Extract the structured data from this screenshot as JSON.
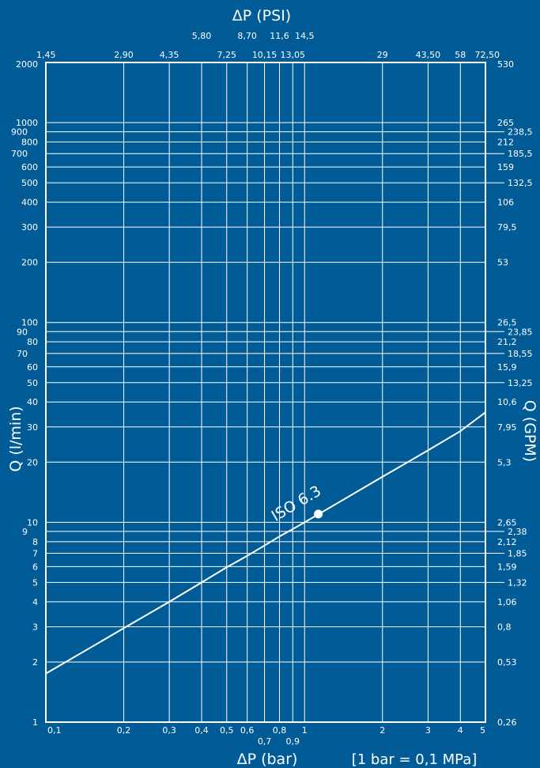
{
  "chart_data": {
    "type": "line",
    "x_scale": "log",
    "y_scale": "log",
    "xlim": [
      0.1,
      5
    ],
    "ylim": [
      1,
      2000
    ],
    "grid": true,
    "xlabel_bottom": "ΔP (bar)",
    "xlabel_top": "ΔP (PSI)",
    "ylabel_left": "Q (l/min)",
    "ylabel_right": "Q (GPM)",
    "note": "[1 bar = 0,1 MPa]",
    "x_bottom_ticks": [
      {
        "v": 0.1,
        "label": "0,1"
      },
      {
        "v": 0.2,
        "label": "0,2"
      },
      {
        "v": 0.3,
        "label": "0,3"
      },
      {
        "v": 0.4,
        "label": "0,4"
      },
      {
        "v": 0.5,
        "label": "0,5"
      },
      {
        "v": 0.6,
        "label": "0,6"
      },
      {
        "v": 0.7,
        "label": "0,7"
      },
      {
        "v": 0.8,
        "label": "0,8"
      },
      {
        "v": 0.9,
        "label": "0,9"
      },
      {
        "v": 1,
        "label": "1"
      },
      {
        "v": 2,
        "label": "2"
      },
      {
        "v": 3,
        "label": "3"
      },
      {
        "v": 4,
        "label": "4"
      },
      {
        "v": 5,
        "label": "5"
      }
    ],
    "x_top_ticks": [
      {
        "v": 0.1,
        "label": "1,45"
      },
      {
        "v": 0.2,
        "label": "2,90"
      },
      {
        "v": 0.3,
        "label": "4,35"
      },
      {
        "v": 0.4,
        "label": "5,80"
      },
      {
        "v": 0.5,
        "label": "7,25"
      },
      {
        "v": 0.6,
        "label": "8,70"
      },
      {
        "v": 0.7,
        "label": "10,15"
      },
      {
        "v": 0.8,
        "label": "11,6"
      },
      {
        "v": 0.9,
        "label": "13,05"
      },
      {
        "v": 1,
        "label": "14,5"
      },
      {
        "v": 2,
        "label": "29"
      },
      {
        "v": 3,
        "label": "43,50"
      },
      {
        "v": 4,
        "label": "58"
      },
      {
        "v": 5,
        "label": "72,50"
      }
    ],
    "y_left_ticks": [
      {
        "v": 1,
        "label": "1"
      },
      {
        "v": 2,
        "label": "2"
      },
      {
        "v": 3,
        "label": "3"
      },
      {
        "v": 4,
        "label": "4"
      },
      {
        "v": 5,
        "label": "5"
      },
      {
        "v": 6,
        "label": "6"
      },
      {
        "v": 7,
        "label": "7"
      },
      {
        "v": 8,
        "label": "8"
      },
      {
        "v": 9,
        "label": "9"
      },
      {
        "v": 10,
        "label": "10"
      },
      {
        "v": 20,
        "label": "20"
      },
      {
        "v": 30,
        "label": "30"
      },
      {
        "v": 40,
        "label": "40"
      },
      {
        "v": 50,
        "label": "50"
      },
      {
        "v": 60,
        "label": "60"
      },
      {
        "v": 70,
        "label": "70"
      },
      {
        "v": 80,
        "label": "80"
      },
      {
        "v": 90,
        "label": "90"
      },
      {
        "v": 100,
        "label": "100"
      },
      {
        "v": 200,
        "label": "200"
      },
      {
        "v": 300,
        "label": "300"
      },
      {
        "v": 400,
        "label": "400"
      },
      {
        "v": 500,
        "label": "500"
      },
      {
        "v": 600,
        "label": "600"
      },
      {
        "v": 700,
        "label": "700"
      },
      {
        "v": 800,
        "label": "800"
      },
      {
        "v": 900,
        "label": "900"
      },
      {
        "v": 1000,
        "label": "1000"
      },
      {
        "v": 2000,
        "label": "2000"
      }
    ],
    "y_right_ticks": [
      {
        "v": 1,
        "label": "0,26"
      },
      {
        "v": 2,
        "label": "0,53"
      },
      {
        "v": 3,
        "label": "0,8"
      },
      {
        "v": 4,
        "label": "1,06"
      },
      {
        "v": 5,
        "label": "1,32"
      },
      {
        "v": 6,
        "label": "1,59"
      },
      {
        "v": 7,
        "label": "1,85"
      },
      {
        "v": 8,
        "label": "2,12"
      },
      {
        "v": 9,
        "label": "2,38"
      },
      {
        "v": 10,
        "label": "2,65"
      },
      {
        "v": 20,
        "label": "5,3"
      },
      {
        "v": 30,
        "label": "7,95"
      },
      {
        "v": 40,
        "label": "10,6"
      },
      {
        "v": 50,
        "label": "13,25"
      },
      {
        "v": 60,
        "label": "15,9"
      },
      {
        "v": 70,
        "label": "18,55"
      },
      {
        "v": 80,
        "label": "21,2"
      },
      {
        "v": 90,
        "label": "23,85"
      },
      {
        "v": 100,
        "label": "26,5"
      },
      {
        "v": 200,
        "label": "53"
      },
      {
        "v": 300,
        "label": "79,5"
      },
      {
        "v": 400,
        "label": "106"
      },
      {
        "v": 500,
        "label": "132,5"
      },
      {
        "v": 600,
        "label": "159"
      },
      {
        "v": 700,
        "label": "185,5"
      },
      {
        "v": 800,
        "label": "212"
      },
      {
        "v": 900,
        "label": "238,5"
      },
      {
        "v": 1000,
        "label": "265"
      },
      {
        "v": 2000,
        "label": "530"
      }
    ],
    "series": [
      {
        "name": "ISO 6.3",
        "x": [
          0.1,
          0.2,
          0.3,
          0.4,
          0.5,
          0.6,
          0.7,
          0.8,
          0.9,
          1,
          2,
          3,
          4,
          5
        ],
        "y": [
          1.75,
          2.95,
          4.0,
          5.0,
          5.95,
          6.8,
          7.65,
          8.5,
          9.25,
          10.0,
          16.9,
          22.9,
          28.6,
          35.5
        ]
      }
    ],
    "marker": {
      "x": 1.13,
      "y": 11.0
    }
  },
  "colors": {
    "background": "#005b96",
    "foreground": "#ffffff"
  }
}
